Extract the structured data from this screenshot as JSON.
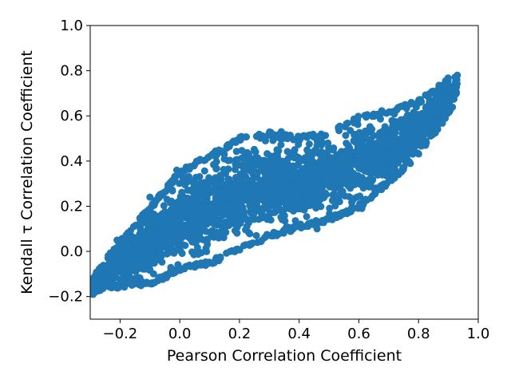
{
  "chart_data": {
    "type": "scatter",
    "title": "",
    "xlabel": "Pearson Correlation Coefficient",
    "ylabel": "Kendall τ Correlation Coefficient",
    "xlim": [
      -0.3,
      1.0
    ],
    "ylim": [
      -0.3,
      1.0
    ],
    "xticks": [
      "−0.2",
      "0.0",
      "0.2",
      "0.4",
      "0.6",
      "0.8",
      "1.0"
    ],
    "xtick_values": [
      -0.2,
      0.0,
      0.2,
      0.4,
      0.6,
      0.8,
      1.0
    ],
    "yticks": [
      "−0.2",
      "0.0",
      "0.2",
      "0.4",
      "0.6",
      "0.8",
      "1.0"
    ],
    "ytick_values": [
      -0.2,
      0.0,
      0.2,
      0.4,
      0.6,
      0.8,
      1.0
    ],
    "grid": false,
    "legend": "none",
    "marker_color": "#1f77b4",
    "series": [
      {
        "point_cloud_envelope": {
          "x": [
            -0.3,
            -0.2,
            -0.1,
            0.0,
            0.1,
            0.2,
            0.3,
            0.4,
            0.5,
            0.6,
            0.7,
            0.8,
            0.9,
            0.93
          ],
          "y_min": [
            -0.19,
            -0.16,
            -0.15,
            -0.09,
            -0.06,
            0.0,
            0.06,
            0.1,
            0.13,
            0.19,
            0.3,
            0.42,
            0.6,
            0.68
          ],
          "y_max": [
            -0.12,
            0.05,
            0.2,
            0.36,
            0.43,
            0.51,
            0.53,
            0.51,
            0.53,
            0.6,
            0.63,
            0.67,
            0.77,
            0.78
          ]
        },
        "outliers": [
          {
            "x": -0.29,
            "y": -0.19
          },
          {
            "x": -0.21,
            "y": 0.05
          },
          {
            "x": -0.1,
            "y": 0.24
          },
          {
            "x": -0.01,
            "y": 0.36
          },
          {
            "x": 0.12,
            "y": 0.42
          },
          {
            "x": 0.34,
            "y": 0.53
          },
          {
            "x": 0.46,
            "y": 0.1
          },
          {
            "x": 0.61,
            "y": 0.19
          },
          {
            "x": 0.93,
            "y": 0.78
          }
        ]
      }
    ]
  }
}
